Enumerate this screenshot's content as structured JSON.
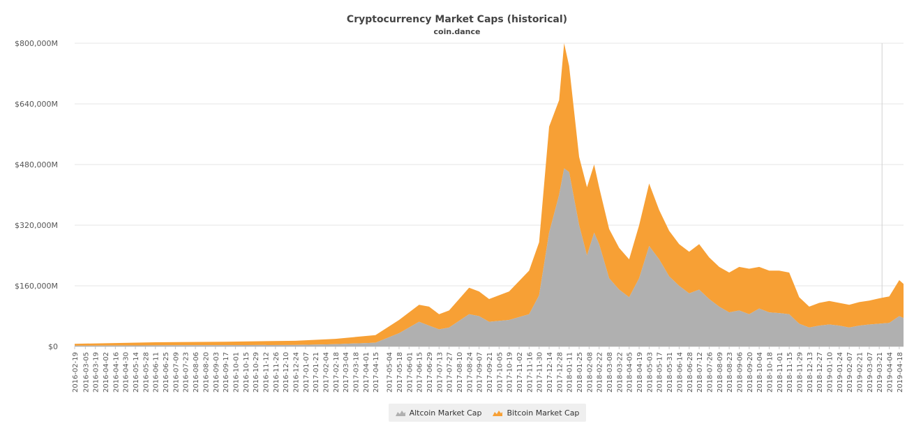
{
  "chart_data": {
    "type": "area",
    "stacked": true,
    "title": "Cryptocurrency Market Caps (historical)",
    "subtitle": "coin.dance",
    "xlabel": "",
    "ylabel": "",
    "ylim": [
      0,
      800000
    ],
    "y_ticks": [
      "$0",
      "$160,000M",
      "$320,000M",
      "$480,000M",
      "$640,000M",
      "$800,000M"
    ],
    "y_tick_values": [
      0,
      160000,
      320000,
      480000,
      640000,
      800000
    ],
    "x_tick_labels": [
      "2016-02-19",
      "2016-03-05",
      "2016-03-19",
      "2016-04-02",
      "2016-04-16",
      "2016-04-30",
      "2016-05-14",
      "2016-05-28",
      "2016-06-11",
      "2016-06-25",
      "2016-07-09",
      "2016-07-23",
      "2016-08-06",
      "2016-08-20",
      "2016-09-03",
      "2016-09-17",
      "2016-10-01",
      "2016-10-15",
      "2016-10-29",
      "2016-11-12",
      "2016-11-26",
      "2016-12-10",
      "2016-12-24",
      "2017-01-07",
      "2017-01-21",
      "2017-02-04",
      "2017-02-18",
      "2017-03-04",
      "2017-03-18",
      "2017-04-01",
      "2017-04-15",
      "2017-05-04",
      "2017-05-18",
      "2017-06-01",
      "2017-06-15",
      "2017-06-29",
      "2017-07-13",
      "2017-07-27",
      "2017-08-10",
      "2017-08-24",
      "2017-09-07",
      "2017-09-21",
      "2017-10-05",
      "2017-10-19",
      "2017-11-02",
      "2017-11-16",
      "2017-11-30",
      "2017-12-14",
      "2017-12-28",
      "2018-01-11",
      "2018-01-25",
      "2018-02-08",
      "2018-02-22",
      "2018-03-08",
      "2018-03-22",
      "2018-04-05",
      "2018-04-19",
      "2018-05-03",
      "2018-05-17",
      "2018-05-31",
      "2018-06-14",
      "2018-06-28",
      "2018-07-12",
      "2018-07-26",
      "2018-08-09",
      "2018-08-23",
      "2018-09-06",
      "2018-09-20",
      "2018-10-04",
      "2018-10-18",
      "2018-11-01",
      "2018-11-15",
      "2018-11-29",
      "2018-12-13",
      "2018-12-27",
      "2019-01-10",
      "2019-01-24",
      "2019-02-07",
      "2019-02-21",
      "2019-03-07",
      "2019-03-21",
      "2019-04-04",
      "2019-04-18"
    ],
    "x": [
      "2016-02-19",
      "2016-06-11",
      "2016-09-17",
      "2016-12-24",
      "2017-02-18",
      "2017-04-15",
      "2017-05-18",
      "2017-06-15",
      "2017-06-29",
      "2017-07-13",
      "2017-07-27",
      "2017-08-24",
      "2017-09-07",
      "2017-09-21",
      "2017-10-19",
      "2017-11-16",
      "2017-11-30",
      "2017-12-14",
      "2017-12-28",
      "2018-01-04",
      "2018-01-11",
      "2018-01-18",
      "2018-01-25",
      "2018-02-05",
      "2018-02-15",
      "2018-02-22",
      "2018-03-08",
      "2018-03-22",
      "2018-04-05",
      "2018-04-19",
      "2018-05-03",
      "2018-05-17",
      "2018-05-31",
      "2018-06-14",
      "2018-06-28",
      "2018-07-12",
      "2018-07-26",
      "2018-08-09",
      "2018-08-23",
      "2018-09-06",
      "2018-09-20",
      "2018-10-04",
      "2018-10-18",
      "2018-11-01",
      "2018-11-15",
      "2018-11-29",
      "2018-12-13",
      "2018-12-27",
      "2019-01-10",
      "2019-01-24",
      "2019-02-07",
      "2019-02-21",
      "2019-03-07",
      "2019-03-21",
      "2019-04-04",
      "2019-04-18",
      "2019-04-24"
    ],
    "series": [
      {
        "name": "Altcoin Market Cap",
        "color": "#b0b0b0",
        "values": [
          2000,
          3000,
          3500,
          4000,
          6000,
          10000,
          35000,
          65000,
          55000,
          45000,
          50000,
          85000,
          80000,
          65000,
          70000,
          85000,
          135000,
          300000,
          400000,
          470000,
          460000,
          390000,
          320000,
          240000,
          300000,
          270000,
          180000,
          150000,
          130000,
          180000,
          265000,
          230000,
          185000,
          160000,
          140000,
          150000,
          125000,
          105000,
          90000,
          95000,
          85000,
          100000,
          90000,
          88000,
          85000,
          60000,
          50000,
          55000,
          58000,
          55000,
          50000,
          55000,
          58000,
          60000,
          62000,
          80000,
          75000
        ]
      },
      {
        "name": "Bitcoin Market Cap",
        "color": "#f7a035",
        "values": [
          5000,
          8000,
          9000,
          11000,
          14000,
          20000,
          35000,
          45000,
          50000,
          40000,
          45000,
          70000,
          65000,
          60000,
          75000,
          115000,
          140000,
          280000,
          250000,
          330000,
          280000,
          230000,
          180000,
          180000,
          180000,
          150000,
          130000,
          110000,
          100000,
          140000,
          165000,
          130000,
          120000,
          110000,
          110000,
          120000,
          110000,
          105000,
          105000,
          115000,
          120000,
          110000,
          110000,
          112000,
          110000,
          70000,
          55000,
          60000,
          62000,
          60000,
          60000,
          62000,
          63000,
          67000,
          70000,
          95000,
          90000
        ]
      }
    ],
    "legend_position": "bottom-center",
    "grid": true
  }
}
